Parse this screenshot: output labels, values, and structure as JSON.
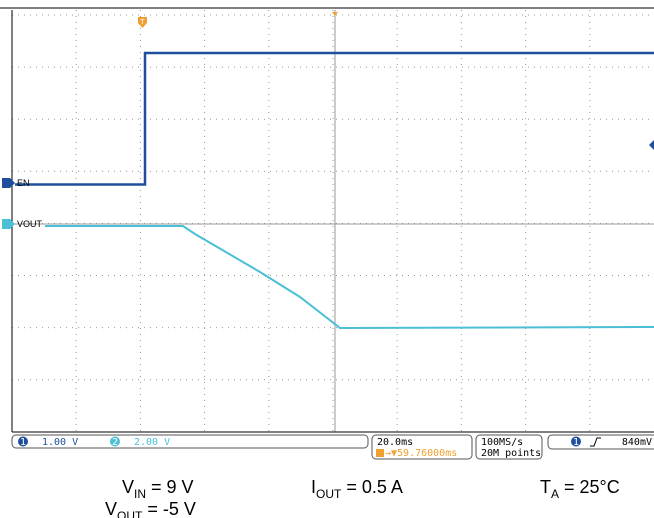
{
  "channels": [
    {
      "number": "1",
      "label": "EN",
      "scale": "1.00 V"
    },
    {
      "number": "2",
      "label": "VOUT",
      "scale": "2.00 V"
    }
  ],
  "timebase": {
    "trigger_marker": "T",
    "scale": "20.0ms",
    "delay": "→▼59.76000ms"
  },
  "acquisition": {
    "rate": "100MS/s",
    "points": "20M points"
  },
  "trigger": {
    "source": "1",
    "level": "840mV"
  },
  "conditions": [
    {
      "symbol": "V",
      "subscript": "IN",
      "rest": " = 9 V"
    },
    {
      "symbol": "I",
      "subscript": "OUT",
      "rest": " = 0.5 A"
    },
    {
      "symbol": "T",
      "subscript": "A",
      "rest": " = 25°C"
    },
    {
      "symbol": "V",
      "subscript": "OUT",
      "rest": " = -5 V"
    }
  ]
}
